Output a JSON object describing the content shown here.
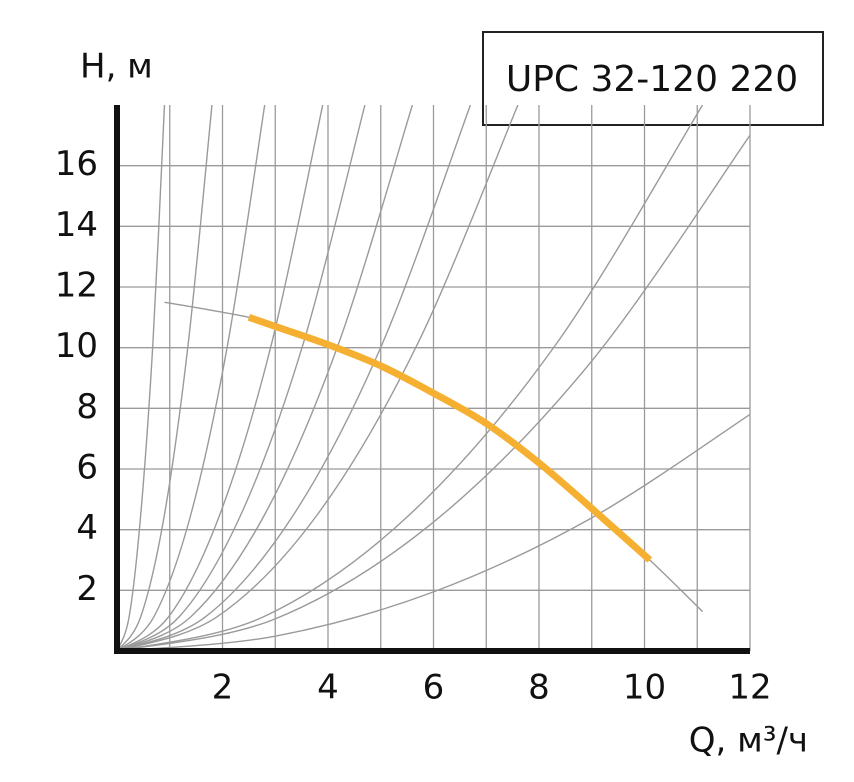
{
  "chart_data": {
    "type": "line",
    "title": "UPC 32-120 220",
    "y_label": "H, м",
    "x_label": "Q, м³/ч",
    "xlim": [
      0,
      12
    ],
    "ylim": [
      0,
      18
    ],
    "xticks": [
      2,
      4,
      6,
      8,
      10,
      12
    ],
    "yticks": [
      2,
      4,
      6,
      8,
      10,
      12,
      14,
      16
    ],
    "x_grid_lines": [
      1,
      2,
      3,
      4,
      5,
      6,
      7,
      8,
      9,
      10,
      11,
      12
    ],
    "grid": true,
    "series": [
      {
        "color": "#9a9a9a",
        "x": [
          0,
          0.23,
          0.45,
          0.68,
          0.9
        ],
        "values": [
          0,
          1.13,
          4.5,
          10.13,
          18
        ]
      },
      {
        "color": "#9a9a9a",
        "x": [
          0,
          0.45,
          0.9,
          1.35,
          1.8
        ],
        "values": [
          0,
          1.13,
          4.5,
          10.13,
          18
        ]
      },
      {
        "color": "#9a9a9a",
        "x": [
          0,
          0.7,
          1.4,
          2.1,
          2.8
        ],
        "values": [
          0,
          1.13,
          4.5,
          10.13,
          18
        ]
      },
      {
        "color": "#9a9a9a",
        "x": [
          0,
          0.98,
          1.95,
          2.93,
          3.9
        ],
        "values": [
          0,
          1.13,
          4.5,
          10.13,
          18
        ]
      },
      {
        "color": "#9a9a9a",
        "x": [
          0,
          1.18,
          2.35,
          3.53,
          4.7
        ],
        "values": [
          0,
          1.13,
          4.5,
          10.13,
          18
        ]
      },
      {
        "color": "#9a9a9a",
        "x": [
          0,
          1.4,
          2.8,
          4.2,
          5.6
        ],
        "values": [
          0,
          1.13,
          4.5,
          10.13,
          18
        ]
      },
      {
        "color": "#9a9a9a",
        "x": [
          0,
          1.68,
          3.35,
          5.03,
          6.7
        ],
        "values": [
          0,
          1.13,
          4.5,
          10.13,
          18
        ]
      },
      {
        "color": "#9a9a9a",
        "x": [
          0,
          1.9,
          3.8,
          5.7,
          7.6
        ],
        "values": [
          0,
          1.13,
          4.5,
          10.13,
          18
        ]
      },
      {
        "color": "#9a9a9a",
        "x": [
          0,
          2.78,
          5.55,
          8.33,
          11.1
        ],
        "values": [
          0,
          1.13,
          4.5,
          10.13,
          18
        ]
      },
      {
        "color": "#9a9a9a",
        "x": [
          0,
          3,
          6,
          9,
          12
        ],
        "values": [
          0,
          1.06,
          4.25,
          9.56,
          17
        ]
      },
      {
        "color": "#9a9a9a",
        "x": [
          0,
          3,
          6,
          9,
          12
        ],
        "values": [
          0,
          0.49,
          1.95,
          4.39,
          7.8
        ]
      },
      {
        "color": "#9a9a9a",
        "x": [
          0.9,
          2.5,
          3,
          4,
          5,
          6,
          7,
          8,
          9,
          10.1,
          11.1
        ],
        "values": [
          11.5,
          11,
          10.7,
          10.1,
          9.4,
          8.5,
          7.5,
          6.2,
          4.7,
          3.0,
          1.3
        ]
      },
      {
        "color": "#f5b031",
        "width": 7,
        "x": [
          2.5,
          3,
          4,
          5,
          6,
          7,
          8,
          9,
          10.1
        ],
        "values": [
          11,
          10.7,
          10.1,
          9.4,
          8.5,
          7.5,
          6.2,
          4.7,
          3.0
        ]
      }
    ]
  }
}
